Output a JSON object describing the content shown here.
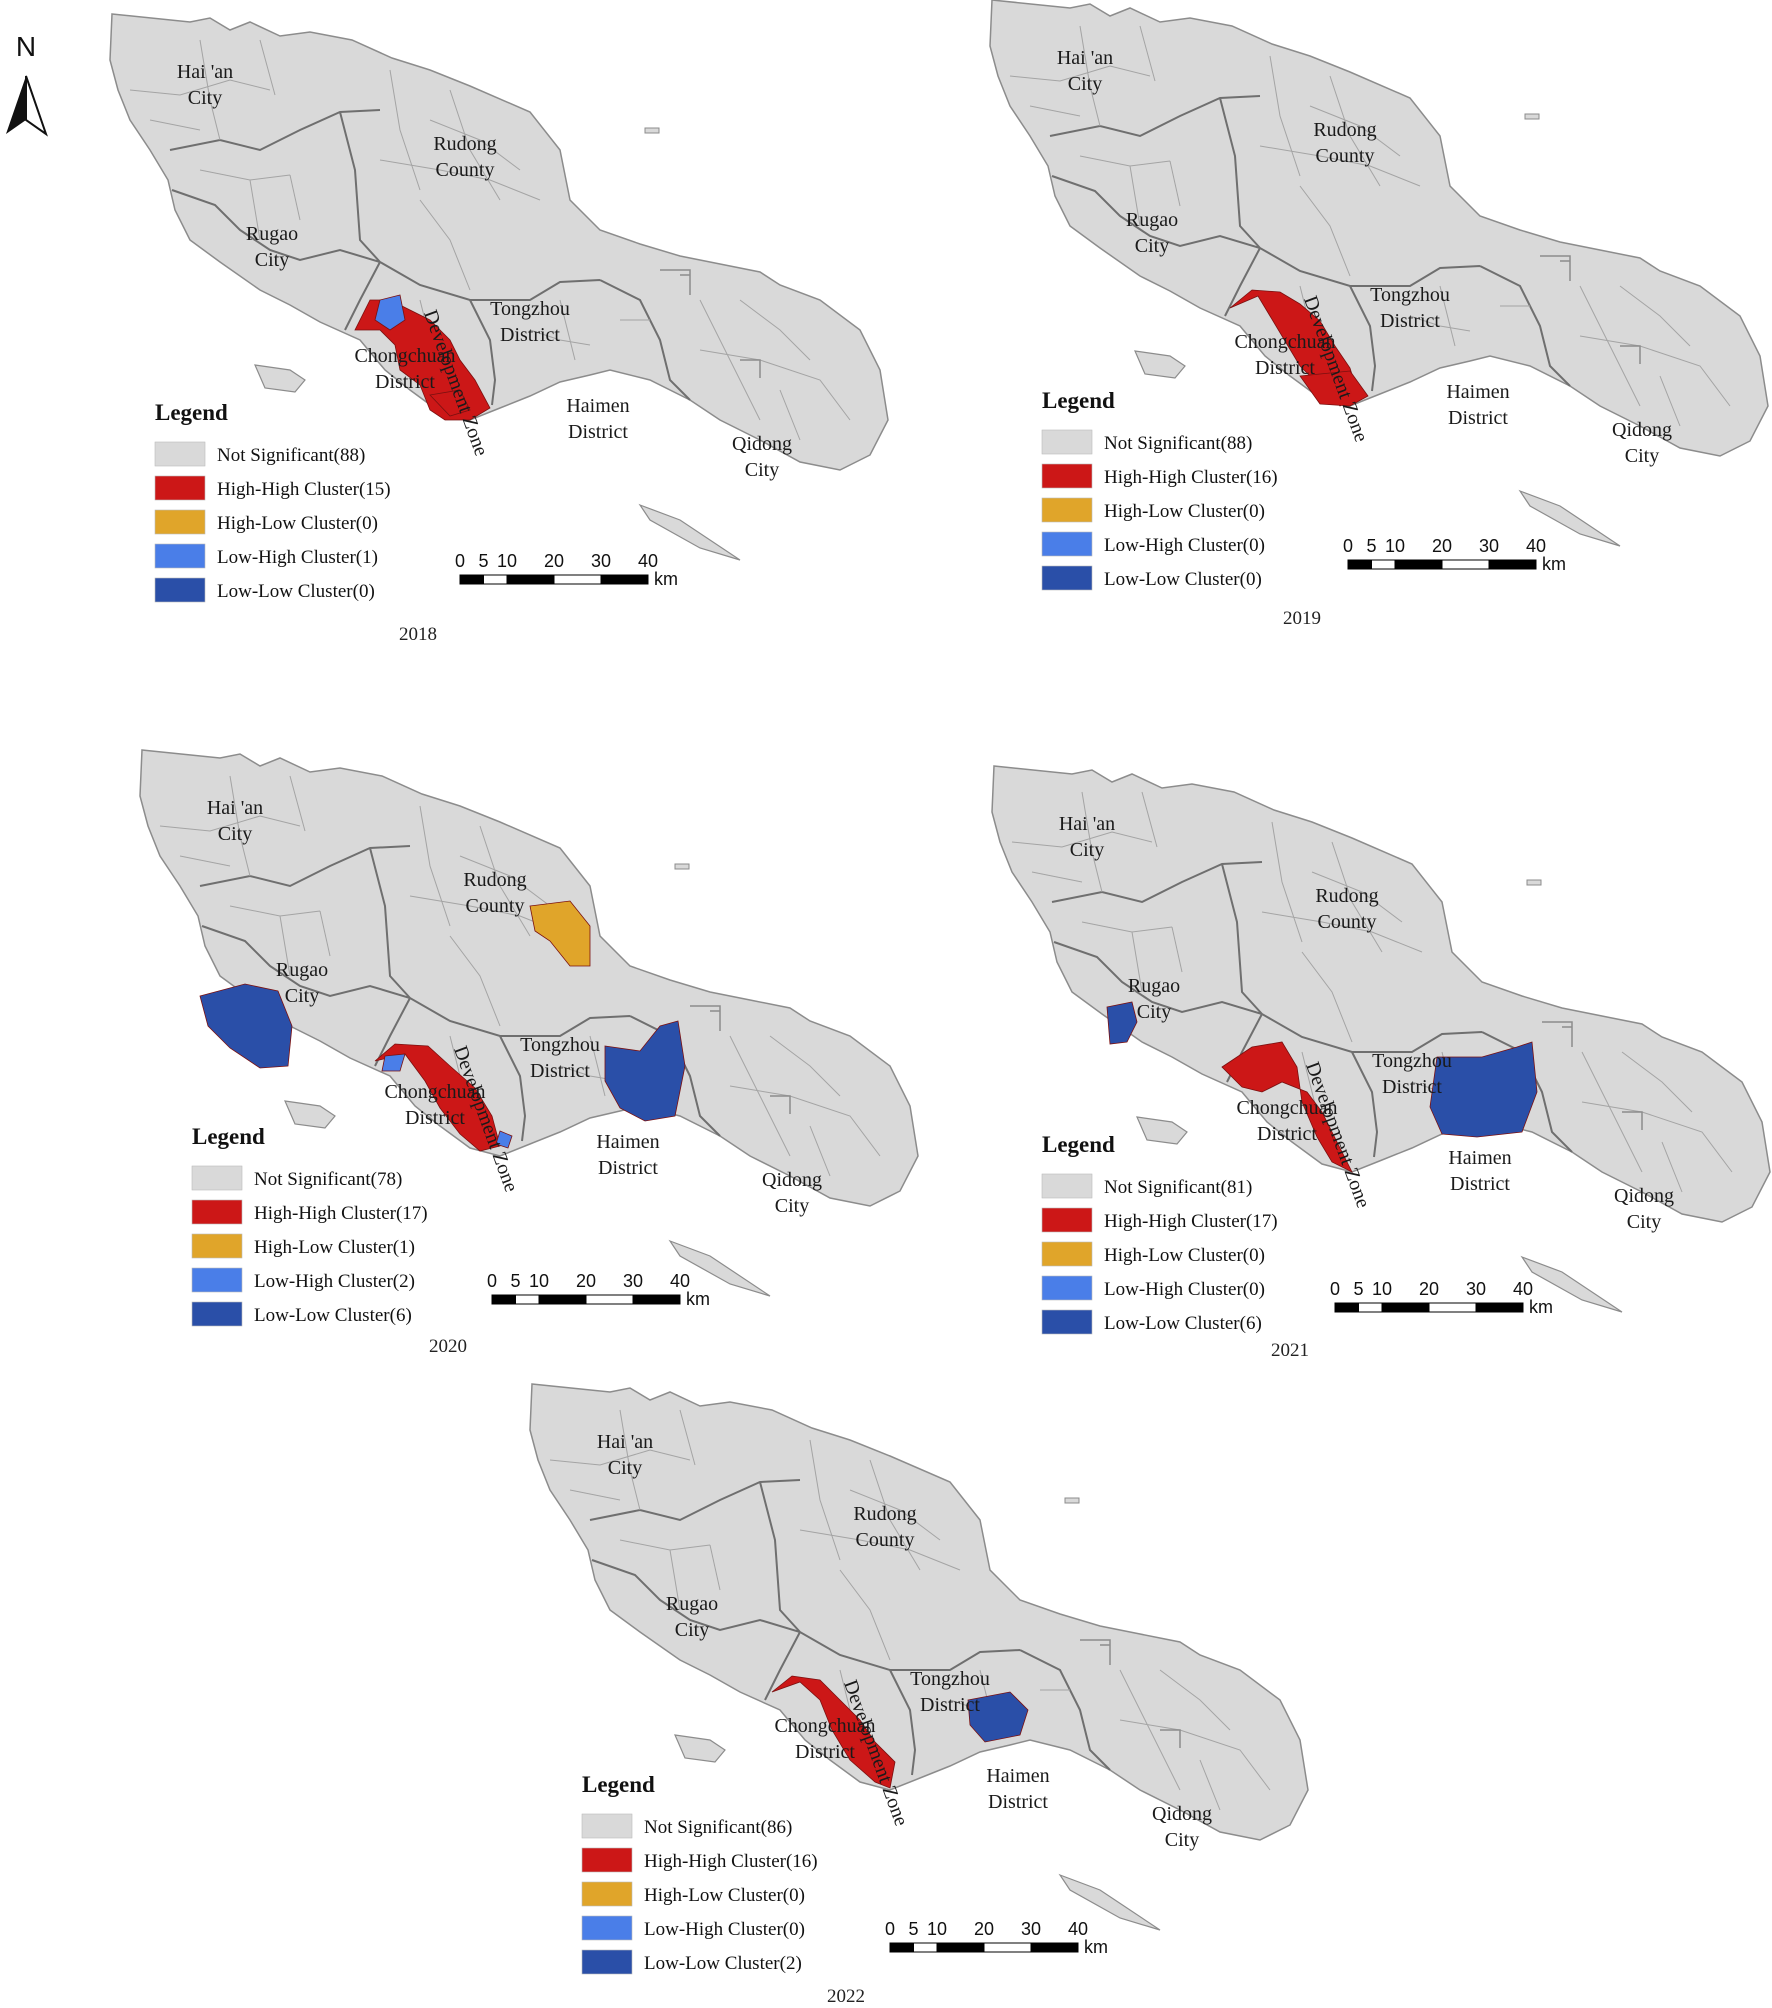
{
  "north_label": "N",
  "scale": {
    "ticks": [
      "0",
      "5",
      "10",
      "20",
      "30",
      "40"
    ],
    "unit": "km"
  },
  "colors": {
    "not_significant": "#d9d9d9",
    "high_high": "#cc1717",
    "high_low": "#e0a52a",
    "low_high": "#4a7ee8",
    "low_low": "#2a4fa8",
    "boundary": "#9b9b9b"
  },
  "region_names": {
    "haian": [
      "Hai 'an",
      "City"
    ],
    "rudong": [
      "Rudong",
      "County"
    ],
    "rugao": [
      "Rugao",
      "City"
    ],
    "tongzhou": [
      "Tongzhou",
      "District"
    ],
    "chongchuan": [
      "Chongchuan",
      "District"
    ],
    "haimen": [
      "Haimen",
      "District"
    ],
    "qidong": [
      "Qidong",
      "City"
    ],
    "devzone": "Development Zone"
  },
  "panels": [
    {
      "year": "2018",
      "legend_title": "Legend",
      "legend": [
        {
          "label": "Not Significant(88)",
          "color": "#d9d9d9"
        },
        {
          "label": "High-High Cluster(15)",
          "color": "#cc1717"
        },
        {
          "label": "High-Low Cluster(0)",
          "color": "#e0a52a"
        },
        {
          "label": "Low-High Cluster(1)",
          "color": "#4a7ee8"
        },
        {
          "label": "Low-Low Cluster(0)",
          "color": "#2a4fa8"
        }
      ]
    },
    {
      "year": "2019",
      "legend_title": "Legend",
      "legend": [
        {
          "label": "Not Significant(88)",
          "color": "#d9d9d9"
        },
        {
          "label": "High-High Cluster(16)",
          "color": "#cc1717"
        },
        {
          "label": "High-Low Cluster(0)",
          "color": "#e0a52a"
        },
        {
          "label": "Low-High Cluster(0)",
          "color": "#4a7ee8"
        },
        {
          "label": "Low-Low Cluster(0)",
          "color": "#2a4fa8"
        }
      ]
    },
    {
      "year": "2020",
      "legend_title": "Legend",
      "legend": [
        {
          "label": "Not Significant(78)",
          "color": "#d9d9d9"
        },
        {
          "label": "High-High Cluster(17)",
          "color": "#cc1717"
        },
        {
          "label": "High-Low Cluster(1)",
          "color": "#e0a52a"
        },
        {
          "label": "Low-High Cluster(2)",
          "color": "#4a7ee8"
        },
        {
          "label": "Low-Low Cluster(6)",
          "color": "#2a4fa8"
        }
      ]
    },
    {
      "year": "2021",
      "legend_title": "Legend",
      "legend": [
        {
          "label": "Not Significant(81)",
          "color": "#d9d9d9"
        },
        {
          "label": "High-High Cluster(17)",
          "color": "#cc1717"
        },
        {
          "label": "High-Low Cluster(0)",
          "color": "#e0a52a"
        },
        {
          "label": "Low-High Cluster(0)",
          "color": "#4a7ee8"
        },
        {
          "label": "Low-Low Cluster(6)",
          "color": "#2a4fa8"
        }
      ]
    },
    {
      "year": "2022",
      "legend_title": "Legend",
      "legend": [
        {
          "label": "Not Significant(86)",
          "color": "#d9d9d9"
        },
        {
          "label": "High-High Cluster(16)",
          "color": "#cc1717"
        },
        {
          "label": "High-Low Cluster(0)",
          "color": "#e0a52a"
        },
        {
          "label": "Low-High Cluster(0)",
          "color": "#4a7ee8"
        },
        {
          "label": "Low-Low Cluster(2)",
          "color": "#2a4fa8"
        }
      ]
    }
  ]
}
